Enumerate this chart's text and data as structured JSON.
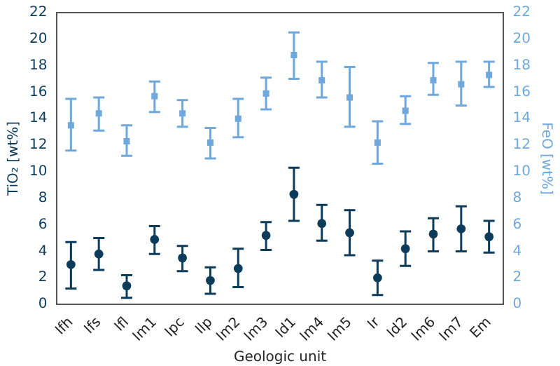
{
  "chart_data": {
    "type": "scatter",
    "xlabel": "Geologic unit",
    "ylabel": "TiO₂ [wt%]",
    "y2label": "FeO [wt%]",
    "categories": [
      "Ifh",
      "Ifs",
      "Ifl",
      "Im1",
      "Ipc",
      "Ilp",
      "Im2",
      "Im3",
      "Id1",
      "Im4",
      "Im5",
      "Ir",
      "Id2",
      "Im6",
      "Im7",
      "Em"
    ],
    "ylim": [
      0,
      22
    ],
    "yticks": [
      0,
      2,
      4,
      6,
      8,
      10,
      12,
      14,
      16,
      18,
      20,
      22
    ],
    "y2lim": [
      0,
      22
    ],
    "y2ticks": [
      0,
      2,
      4,
      6,
      8,
      10,
      12,
      14,
      16,
      18,
      20,
      22
    ],
    "grid": false,
    "legend": false,
    "series": [
      {
        "color": "#0d3b5a",
        "marker": "circle",
        "values": [
          3.0,
          3.8,
          1.4,
          4.9,
          3.5,
          1.8,
          2.7,
          5.2,
          8.3,
          6.1,
          5.4,
          2.0,
          4.2,
          5.3,
          5.7,
          5.1
        ],
        "errors": [
          [
            1.2,
            4.7
          ],
          [
            2.6,
            5.0
          ],
          [
            0.5,
            2.2
          ],
          [
            3.8,
            5.9
          ],
          [
            2.5,
            4.4
          ],
          [
            0.8,
            2.8
          ],
          [
            1.3,
            4.2
          ],
          [
            4.1,
            6.2
          ],
          [
            6.3,
            10.3
          ],
          [
            4.8,
            7.5
          ],
          [
            3.7,
            7.1
          ],
          [
            0.7,
            3.3
          ],
          [
            2.9,
            5.5
          ],
          [
            4.0,
            6.5
          ],
          [
            4.0,
            7.4
          ],
          [
            3.9,
            6.3
          ]
        ]
      },
      {
        "color": "#6fa8dc",
        "marker": "square",
        "axis": "y2",
        "values": [
          13.5,
          14.4,
          12.3,
          15.7,
          14.4,
          12.2,
          14.0,
          15.9,
          18.8,
          16.9,
          15.6,
          12.2,
          14.6,
          16.9,
          16.6,
          17.3
        ],
        "errors": [
          [
            11.6,
            15.5
          ],
          [
            13.1,
            15.6
          ],
          [
            11.2,
            13.5
          ],
          [
            14.5,
            16.8
          ],
          [
            13.4,
            15.4
          ],
          [
            11.0,
            13.3
          ],
          [
            12.6,
            15.5
          ],
          [
            14.7,
            17.1
          ],
          [
            17.0,
            20.5
          ],
          [
            15.6,
            18.3
          ],
          [
            13.4,
            17.9
          ],
          [
            10.6,
            13.8
          ],
          [
            13.6,
            15.7
          ],
          [
            15.8,
            18.2
          ],
          [
            15.0,
            18.3
          ],
          [
            16.4,
            18.3
          ]
        ]
      }
    ]
  }
}
